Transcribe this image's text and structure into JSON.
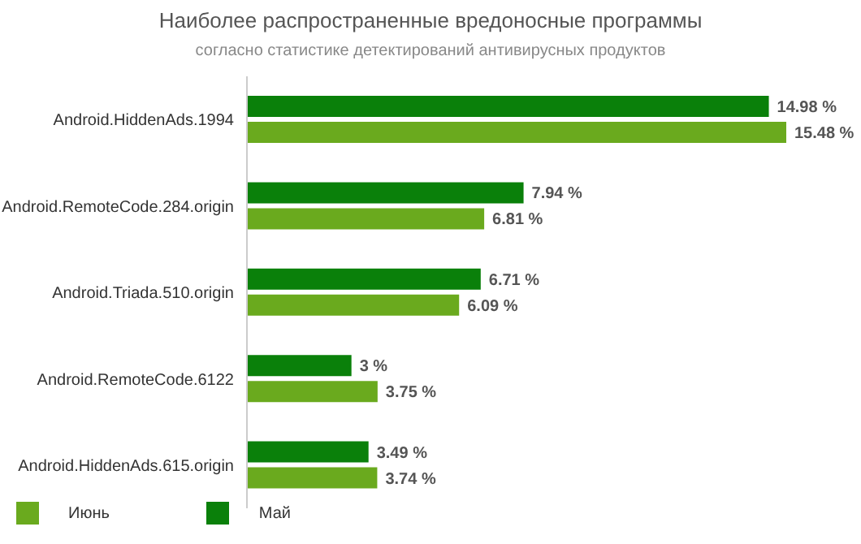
{
  "chart_data": {
    "type": "bar",
    "orientation": "horizontal",
    "title": "Наиболее распространенные вредоносные программы",
    "subtitle": "согласно статистике детектирований антивирусных продуктов",
    "categories": [
      "Android.HiddenAds.1994",
      "Android.RemoteCode.284.origin",
      "Android.Triada.510.origin",
      "Android.RemoteCode.6122",
      "Android.HiddenAds.615.origin"
    ],
    "series": [
      {
        "name": "Май",
        "color": "#0a800a",
        "values": [
          14.98,
          7.94,
          6.71,
          3,
          3.49
        ],
        "value_labels": [
          "14.98 %",
          "7.94 %",
          "6.71 %",
          "3 %",
          "3.49 %"
        ]
      },
      {
        "name": "Июнь",
        "color": "#6aaa1e",
        "values": [
          15.48,
          6.81,
          6.09,
          3.75,
          3.74
        ],
        "value_labels": [
          "15.48 %",
          "6.81 %",
          "6.09 %",
          "3.75 %",
          "3.74 %"
        ]
      }
    ],
    "legend": "bottom left",
    "grid": false
  }
}
